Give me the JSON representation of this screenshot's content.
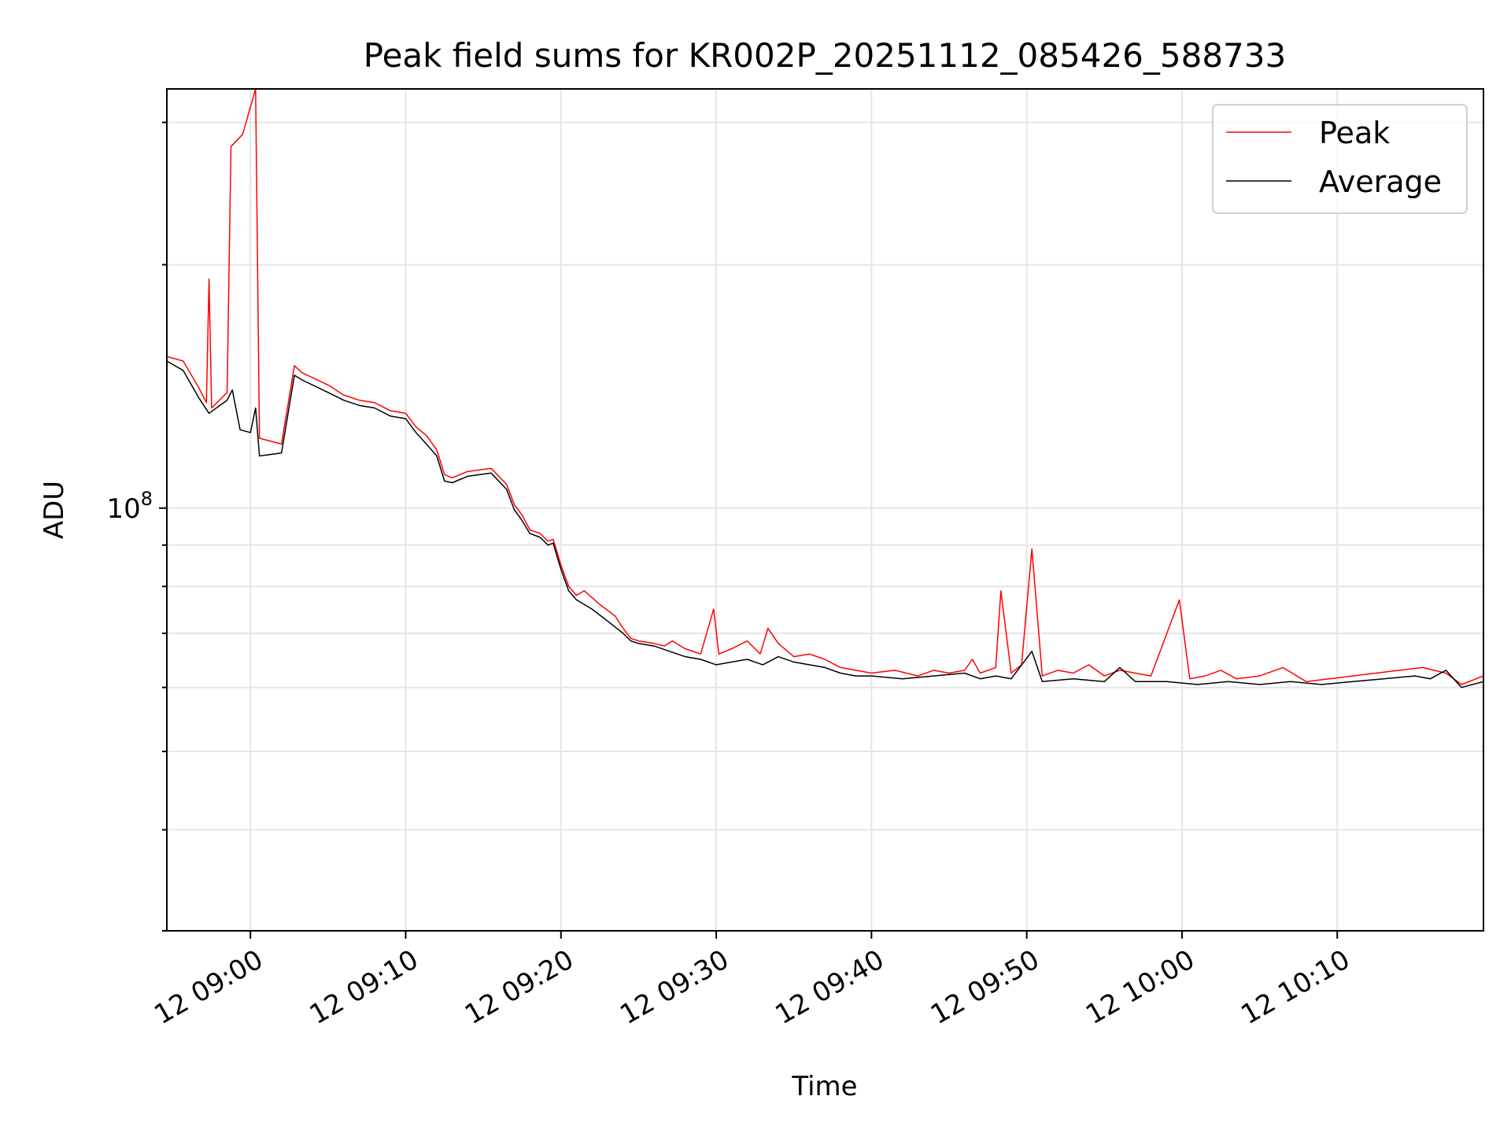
{
  "chart_data": {
    "type": "line",
    "title": "Peak field sums for KR002P_20251112_085426_588733",
    "xlabel": "Time",
    "ylabel": "ADU",
    "y_scale": "log",
    "ylim": [
      30000000,
      330000000
    ],
    "xlim": [
      "12 08:54:37",
      "12 10:19:25"
    ],
    "x_ticks": [
      "12 09:00",
      "12 09:10",
      "12 09:20",
      "12 09:30",
      "12 09:40",
      "12 09:50",
      "12 10:00",
      "12 10:10"
    ],
    "y_major_ticks": [
      100000000
    ],
    "y_major_tick_label": "10^8",
    "grid": true,
    "legend_position": "top-right",
    "series": [
      {
        "name": "Peak",
        "color": "#ff0000",
        "points": [
          [
            "12 08:54:37",
            154000000
          ],
          [
            "12 08:55:40",
            152000000
          ],
          [
            "12 08:56:40",
            141000000
          ],
          [
            "12 08:57:10",
            135000000
          ],
          [
            "12 08:57:20",
            192000000
          ],
          [
            "12 08:57:30",
            133000000
          ],
          [
            "12 08:58:30",
            139000000
          ],
          [
            "12 08:58:45",
            280000000
          ],
          [
            "12 08:59:30",
            290000000
          ],
          [
            "12 09:00:20",
            330000000
          ],
          [
            "12 09:00:35",
            122000000
          ],
          [
            "12 09:02:00",
            120000000
          ],
          [
            "12 09:02:50",
            150000000
          ],
          [
            "12 09:03:20",
            147000000
          ],
          [
            "12 09:05:00",
            142000000
          ],
          [
            "12 09:06:00",
            138000000
          ],
          [
            "12 09:07:00",
            136000000
          ],
          [
            "12 09:08:00",
            135000000
          ],
          [
            "12 09:09:00",
            132000000
          ],
          [
            "12 09:10:00",
            131000000
          ],
          [
            "12 09:10:40",
            126000000
          ],
          [
            "12 09:11:20",
            123000000
          ],
          [
            "12 09:12:00",
            118000000
          ],
          [
            "12 09:12:30",
            110000000
          ],
          [
            "12 09:13:00",
            109000000
          ],
          [
            "12 09:14:00",
            111000000
          ],
          [
            "12 09:15:30",
            112000000
          ],
          [
            "12 09:16:30",
            107000000
          ],
          [
            "12 09:17:00",
            101000000
          ],
          [
            "12 09:17:30",
            98000000
          ],
          [
            "12 09:18:00",
            94000000
          ],
          [
            "12 09:18:40",
            93000000
          ],
          [
            "12 09:19:10",
            91000000
          ],
          [
            "12 09:19:30",
            91500000
          ],
          [
            "12 09:20:00",
            85000000
          ],
          [
            "12 09:20:30",
            80000000
          ],
          [
            "12 09:21:00",
            78000000
          ],
          [
            "12 09:21:30",
            79000000
          ],
          [
            "12 09:22:30",
            76000000
          ],
          [
            "12 09:23:30",
            73500000
          ],
          [
            "12 09:24:00",
            71000000
          ],
          [
            "12 09:24:30",
            69000000
          ],
          [
            "12 09:25:00",
            68500000
          ],
          [
            "12 09:26:00",
            68000000
          ],
          [
            "12 09:26:40",
            67500000
          ],
          [
            "12 09:27:10",
            68500000
          ],
          [
            "12 09:28:00",
            67000000
          ],
          [
            "12 09:29:00",
            66000000
          ],
          [
            "12 09:29:50",
            75000000
          ],
          [
            "12 09:30:10",
            66000000
          ],
          [
            "12 09:31:00",
            67000000
          ],
          [
            "12 09:32:00",
            68500000
          ],
          [
            "12 09:32:50",
            66000000
          ],
          [
            "12 09:33:20",
            71000000
          ],
          [
            "12 09:34:00",
            68000000
          ],
          [
            "12 09:35:00",
            65500000
          ],
          [
            "12 09:36:00",
            66000000
          ],
          [
            "12 09:37:00",
            65000000
          ],
          [
            "12 09:38:00",
            63500000
          ],
          [
            "12 09:39:00",
            63000000
          ],
          [
            "12 09:40:00",
            62500000
          ],
          [
            "12 09:41:30",
            63000000
          ],
          [
            "12 09:43:00",
            62000000
          ],
          [
            "12 09:44:00",
            63000000
          ],
          [
            "12 09:45:00",
            62500000
          ],
          [
            "12 09:46:00",
            63000000
          ],
          [
            "12 09:46:30",
            65000000
          ],
          [
            "12 09:47:00",
            62500000
          ],
          [
            "12 09:48:00",
            63500000
          ],
          [
            "12 09:48:20",
            79000000
          ],
          [
            "12 09:49:00",
            62500000
          ],
          [
            "12 09:49:40",
            64000000
          ],
          [
            "12 09:50:20",
            89000000
          ],
          [
            "12 09:51:00",
            62000000
          ],
          [
            "12 09:52:00",
            63000000
          ],
          [
            "12 09:53:00",
            62500000
          ],
          [
            "12 09:54:00",
            64000000
          ],
          [
            "12 09:55:00",
            62000000
          ],
          [
            "12 09:56:00",
            63000000
          ],
          [
            "12 09:57:00",
            62500000
          ],
          [
            "12 09:58:00",
            62000000
          ],
          [
            "12 09:59:50",
            77000000
          ],
          [
            "12 10:00:30",
            61500000
          ],
          [
            "12 10:01:30",
            62000000
          ],
          [
            "12 10:02:30",
            63000000
          ],
          [
            "12 10:03:30",
            61500000
          ],
          [
            "12 10:05:00",
            62000000
          ],
          [
            "12 10:06:30",
            63500000
          ],
          [
            "12 10:08:00",
            61000000
          ],
          [
            "12 10:09:30",
            61500000
          ],
          [
            "12 10:11:00",
            62000000
          ],
          [
            "12 10:12:30",
            62500000
          ],
          [
            "12 10:14:00",
            63000000
          ],
          [
            "12 10:15:30",
            63500000
          ],
          [
            "12 10:17:00",
            62500000
          ],
          [
            "12 10:18:00",
            60500000
          ],
          [
            "12 10:19:25",
            62000000
          ]
        ]
      },
      {
        "name": "Average",
        "color": "#000000",
        "points": [
          [
            "12 08:54:37",
            152000000
          ],
          [
            "12 08:55:40",
            148000000
          ],
          [
            "12 08:56:40",
            137000000
          ],
          [
            "12 08:57:20",
            131000000
          ],
          [
            "12 08:58:30",
            136000000
          ],
          [
            "12 08:58:50",
            140000000
          ],
          [
            "12 08:59:20",
            125000000
          ],
          [
            "12 09:00:00",
            124000000
          ],
          [
            "12 09:00:20",
            133000000
          ],
          [
            "12 09:00:35",
            116000000
          ],
          [
            "12 09:02:00",
            117000000
          ],
          [
            "12 09:02:50",
            146000000
          ],
          [
            "12 09:03:20",
            144000000
          ],
          [
            "12 09:05:00",
            139000000
          ],
          [
            "12 09:06:00",
            136000000
          ],
          [
            "12 09:07:00",
            134000000
          ],
          [
            "12 09:08:00",
            133000000
          ],
          [
            "12 09:09:00",
            130000000
          ],
          [
            "12 09:10:00",
            129000000
          ],
          [
            "12 09:10:40",
            124000000
          ],
          [
            "12 09:11:20",
            120000000
          ],
          [
            "12 09:12:00",
            116000000
          ],
          [
            "12 09:12:30",
            108000000
          ],
          [
            "12 09:13:00",
            107500000
          ],
          [
            "12 09:14:00",
            109500000
          ],
          [
            "12 09:15:30",
            110500000
          ],
          [
            "12 09:16:30",
            105500000
          ],
          [
            "12 09:17:00",
            99500000
          ],
          [
            "12 09:17:30",
            96500000
          ],
          [
            "12 09:18:00",
            93000000
          ],
          [
            "12 09:18:40",
            92000000
          ],
          [
            "12 09:19:10",
            90000000
          ],
          [
            "12 09:19:30",
            90500000
          ],
          [
            "12 09:20:00",
            84000000
          ],
          [
            "12 09:20:30",
            79000000
          ],
          [
            "12 09:21:00",
            77000000
          ],
          [
            "12 09:22:00",
            75000000
          ],
          [
            "12 09:23:00",
            72500000
          ],
          [
            "12 09:24:00",
            70000000
          ],
          [
            "12 09:24:30",
            68500000
          ],
          [
            "12 09:25:00",
            68000000
          ],
          [
            "12 09:26:00",
            67500000
          ],
          [
            "12 09:27:00",
            66500000
          ],
          [
            "12 09:28:00",
            65500000
          ],
          [
            "12 09:29:00",
            65000000
          ],
          [
            "12 09:30:00",
            64000000
          ],
          [
            "12 09:31:00",
            64500000
          ],
          [
            "12 09:32:00",
            65000000
          ],
          [
            "12 09:33:00",
            64000000
          ],
          [
            "12 09:34:00",
            65500000
          ],
          [
            "12 09:35:00",
            64500000
          ],
          [
            "12 09:36:00",
            64000000
          ],
          [
            "12 09:37:00",
            63500000
          ],
          [
            "12 09:38:00",
            62500000
          ],
          [
            "12 09:39:00",
            62000000
          ],
          [
            "12 09:40:00",
            62000000
          ],
          [
            "12 09:42:00",
            61500000
          ],
          [
            "12 09:44:00",
            62000000
          ],
          [
            "12 09:46:00",
            62500000
          ],
          [
            "12 09:47:00",
            61500000
          ],
          [
            "12 09:48:00",
            62000000
          ],
          [
            "12 09:49:00",
            61500000
          ],
          [
            "12 09:50:20",
            66500000
          ],
          [
            "12 09:51:00",
            61000000
          ],
          [
            "12 09:53:00",
            61500000
          ],
          [
            "12 09:55:00",
            61000000
          ],
          [
            "12 09:56:00",
            63500000
          ],
          [
            "12 09:57:00",
            61000000
          ],
          [
            "12 09:59:00",
            61000000
          ],
          [
            "12 10:01:00",
            60500000
          ],
          [
            "12 10:03:00",
            61000000
          ],
          [
            "12 10:05:00",
            60500000
          ],
          [
            "12 10:07:00",
            61000000
          ],
          [
            "12 10:09:00",
            60500000
          ],
          [
            "12 10:11:00",
            61000000
          ],
          [
            "12 10:13:00",
            61500000
          ],
          [
            "12 10:15:00",
            62000000
          ],
          [
            "12 10:16:00",
            61500000
          ],
          [
            "12 10:17:00",
            63000000
          ],
          [
            "12 10:18:00",
            60000000
          ],
          [
            "12 10:19:25",
            61000000
          ]
        ]
      }
    ]
  }
}
